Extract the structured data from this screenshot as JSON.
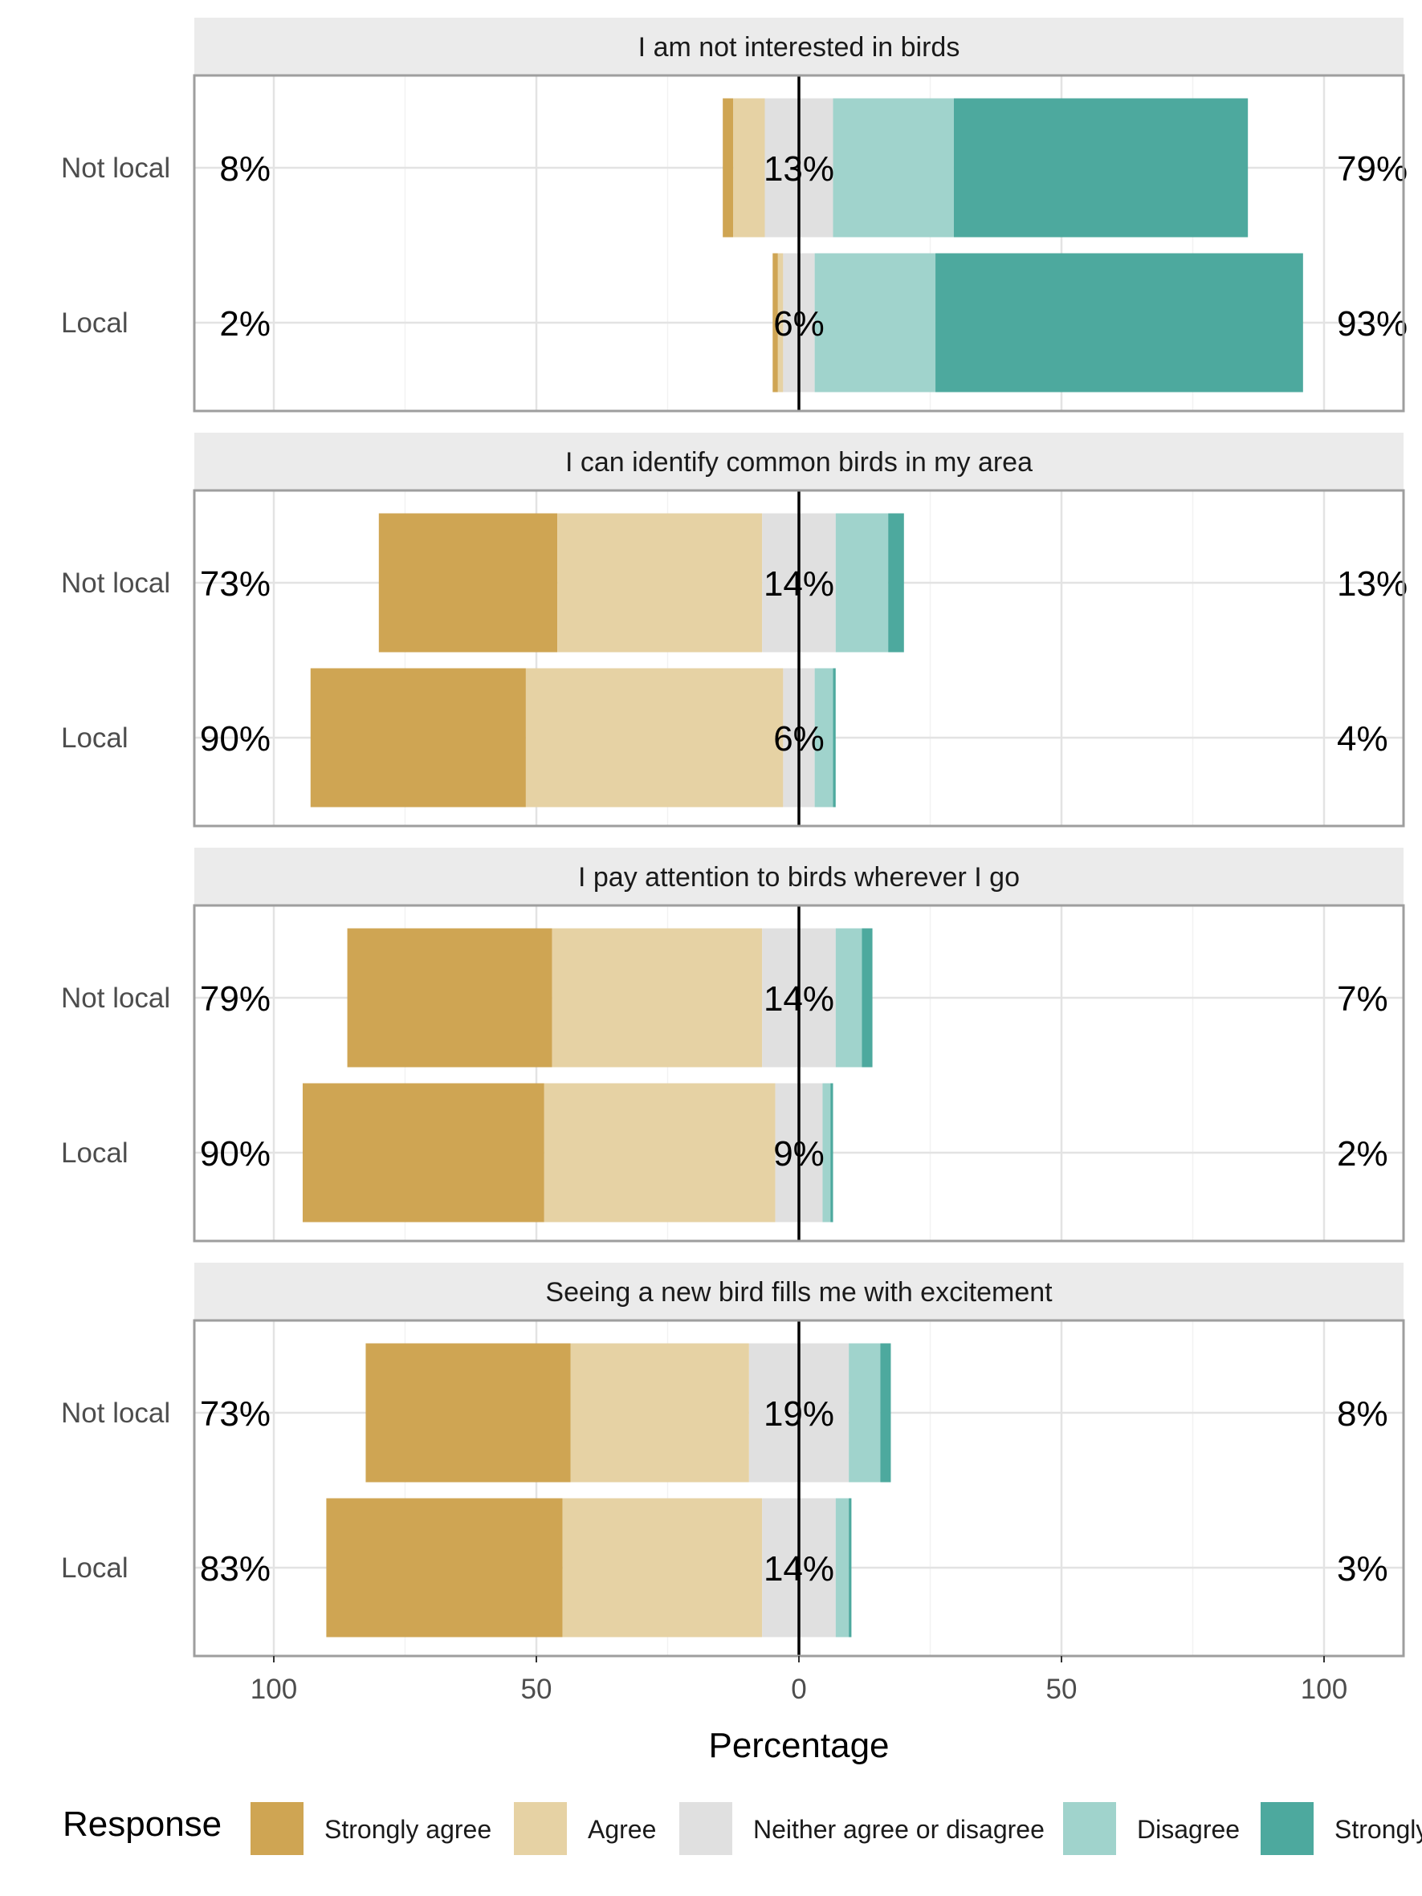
{
  "chart_data": {
    "type": "bar",
    "orientation": "horizontal",
    "layout": "diverging stacked, faceted",
    "xlabel": "Percentage",
    "x_ticks": [
      100,
      50,
      0,
      50,
      100
    ],
    "xlim": [
      -100,
      100
    ],
    "grid": true,
    "legend_title": "Response",
    "legend_position": "bottom",
    "responses": [
      "Strongly agree",
      "Agree",
      "Neither agree or disagree",
      "Disagree",
      "Strongly disagree"
    ],
    "colors": [
      "#CFA553",
      "#E6D2A4",
      "#E0E0E0",
      "#A0D3CC",
      "#4DA99E"
    ],
    "categories": [
      "Not local",
      "Local"
    ],
    "panels": [
      {
        "title": "I am not interested in birds",
        "rows": [
          {
            "group": "Not local",
            "values": [
              2,
              6,
              13,
              23,
              56
            ],
            "left_label": "8%",
            "center_label": "13%",
            "right_label": "79%"
          },
          {
            "group": "Local",
            "values": [
              1,
              1,
              6,
              23,
              70
            ],
            "left_label": "2%",
            "center_label": "6%",
            "right_label": "93%"
          }
        ]
      },
      {
        "title": "I can identify common birds in my area",
        "rows": [
          {
            "group": "Not local",
            "values": [
              34,
              39,
              14,
              10,
              3
            ],
            "left_label": "73%",
            "center_label": "14%",
            "right_label": "13%"
          },
          {
            "group": "Local",
            "values": [
              41,
              49,
              6,
              3.5,
              0.5
            ],
            "left_label": "90%",
            "center_label": "6%",
            "right_label": "4%"
          }
        ]
      },
      {
        "title": "I pay attention to birds wherever I go",
        "rows": [
          {
            "group": "Not local",
            "values": [
              39,
              40,
              14,
              5,
              2
            ],
            "left_label": "79%",
            "center_label": "14%",
            "right_label": "7%"
          },
          {
            "group": "Local",
            "values": [
              46,
              44,
              9,
              1.5,
              0.5
            ],
            "left_label": "90%",
            "center_label": "9%",
            "right_label": "2%"
          }
        ]
      },
      {
        "title": "Seeing a new bird fills me with excitement",
        "rows": [
          {
            "group": "Not local",
            "values": [
              39,
              34,
              19,
              6,
              2
            ],
            "left_label": "73%",
            "center_label": "19%",
            "right_label": "8%"
          },
          {
            "group": "Local",
            "values": [
              45,
              38,
              14,
              2.5,
              0.5
            ],
            "left_label": "83%",
            "center_label": "14%",
            "right_label": "3%"
          }
        ]
      }
    ]
  }
}
